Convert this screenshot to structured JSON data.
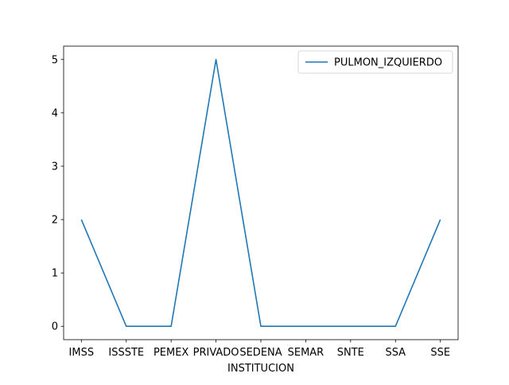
{
  "chart_data": {
    "type": "line",
    "title": "",
    "xlabel": "INSTITUCION",
    "ylabel": "",
    "categories": [
      "IMSS",
      "ISSSTE",
      "PEMEX",
      "PRIVADO",
      "SEDENA",
      "SEMAR",
      "SNTE",
      "SSA",
      "SSE"
    ],
    "series": [
      {
        "name": "PULMON_IZQUIERDO",
        "color": "#1f77b4",
        "values": [
          2,
          0,
          0,
          5,
          0,
          0,
          0,
          0,
          2
        ]
      }
    ],
    "ylim": [
      -0.25,
      5.25
    ],
    "yticks": [
      0,
      1,
      2,
      3,
      4,
      5
    ],
    "grid": false,
    "legend_position": "top-right"
  }
}
